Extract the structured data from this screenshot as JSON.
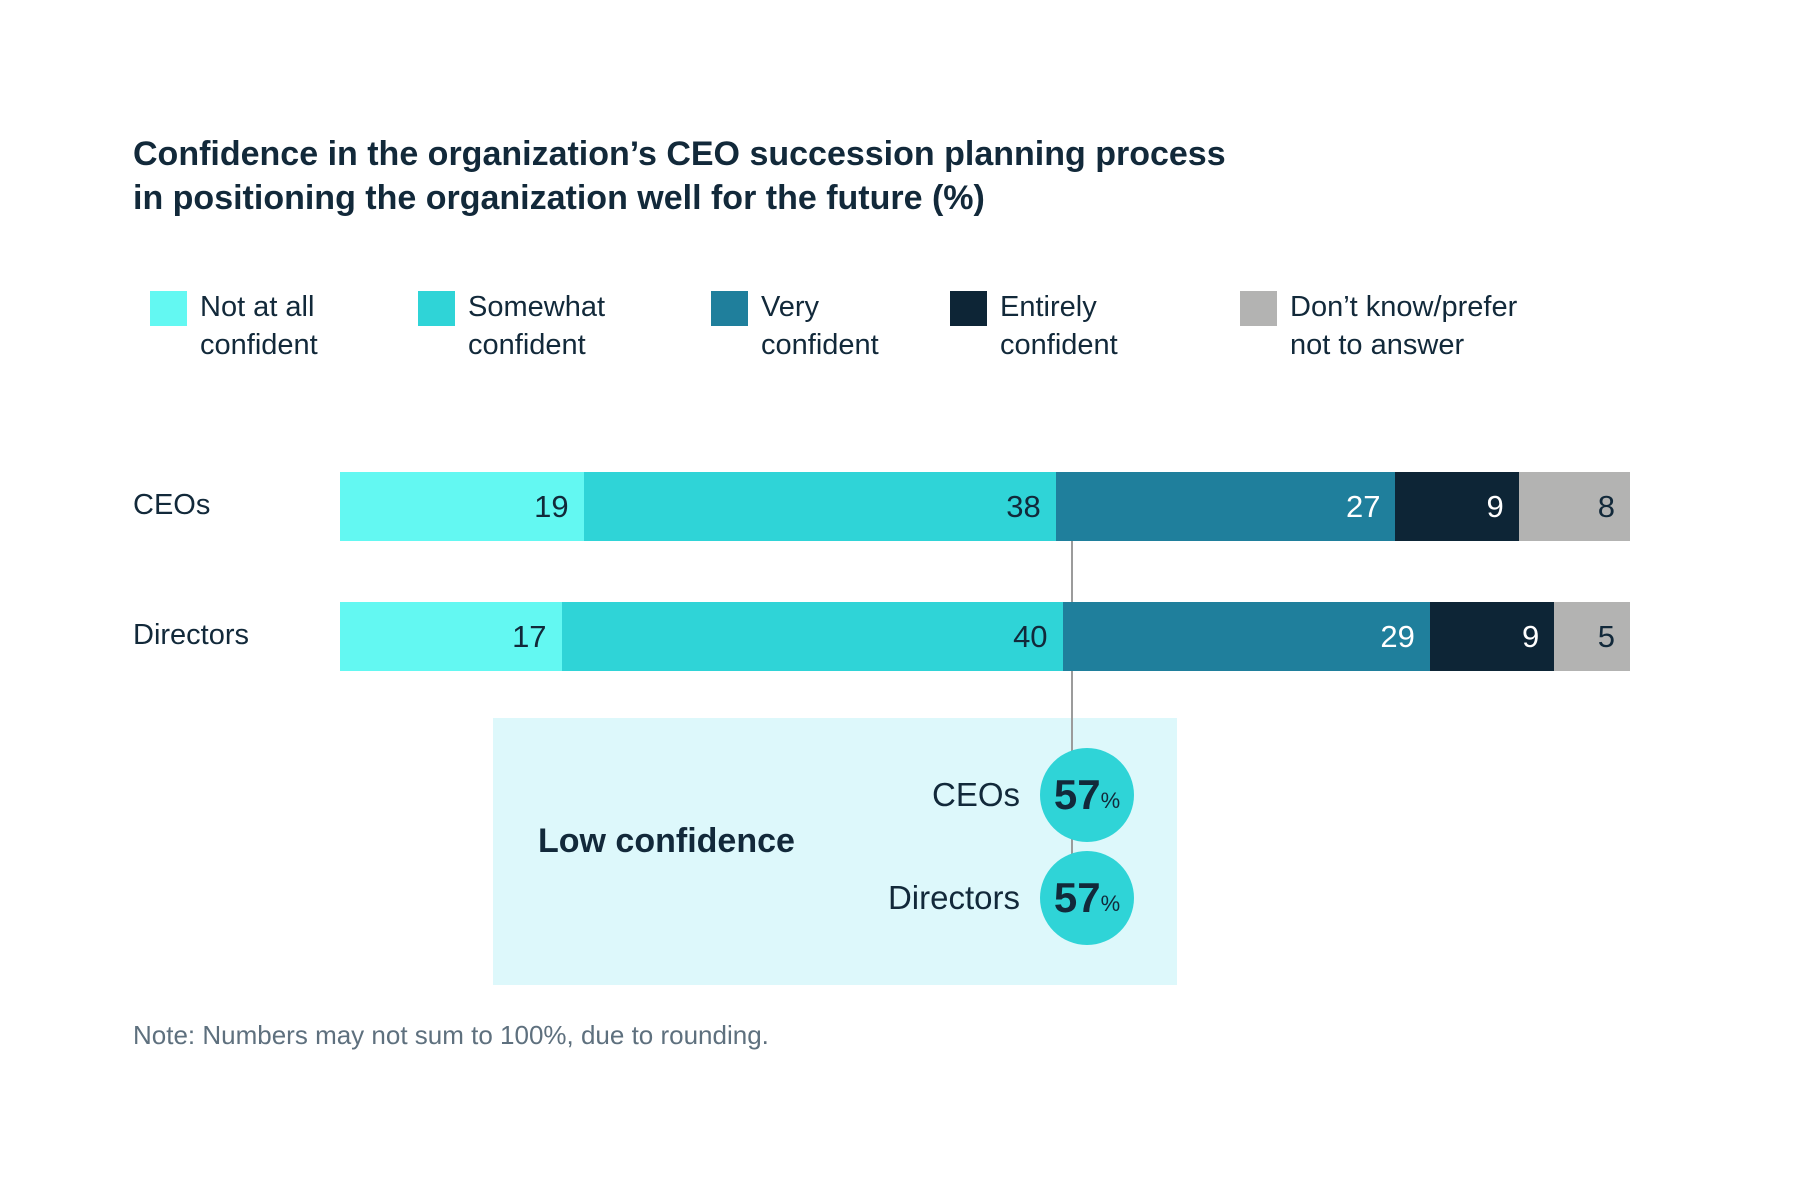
{
  "title": {
    "line1": "Confidence in the organization’s CEO succession planning process",
    "line2": "in positioning the organization well for the future (%)"
  },
  "legend": [
    {
      "line1": "Not at all",
      "line2": "confident"
    },
    {
      "line1": "Somewhat",
      "line2": "confident"
    },
    {
      "line1": "Very",
      "line2": "confident"
    },
    {
      "line1": "Entirely",
      "line2": "confident"
    },
    {
      "line1": "Don’t know/prefer",
      "line2": "not to answer"
    }
  ],
  "chart_data": {
    "type": "bar",
    "variant": "horizontal-stacked",
    "title": "Confidence in the organization’s CEO succession planning process in positioning the organization well for the future (%)",
    "categories": [
      "CEOs",
      "Directors"
    ],
    "series": [
      {
        "name": "Not at all confident",
        "color": "#63F8F2",
        "value_color": "#12293A",
        "values": [
          19,
          17
        ]
      },
      {
        "name": "Somewhat confident",
        "color": "#2FD4D7",
        "value_color": "#12293A",
        "values": [
          38,
          40
        ]
      },
      {
        "name": "Very confident",
        "color": "#1F7F9C",
        "value_color": "#FFFFFF",
        "values": [
          27,
          29
        ]
      },
      {
        "name": "Entirely confident",
        "color": "#0D2536",
        "value_color": "#FFFFFF",
        "values": [
          9,
          9
        ]
      },
      {
        "name": "Don’t know/prefer not to answer",
        "color": "#B3B3B2",
        "value_color": "#12293A",
        "values": [
          8,
          5
        ]
      }
    ],
    "xlim": [
      0,
      100
    ],
    "grid": false,
    "legend_position": "top",
    "callout": {
      "label": "Low confidence",
      "items": [
        {
          "label": "CEOs",
          "value": "57",
          "unit": "%"
        },
        {
          "label": "Directors",
          "value": "57",
          "unit": "%"
        }
      ]
    }
  },
  "note": "Note: Numbers may not sum to 100%, due to rounding.",
  "colors": {
    "background": "#FFFFFF",
    "title_text": "#12293A",
    "note_text": "#5E707E",
    "callout_bg": "#DDF8FB",
    "callout_circle": "#2FD4D7",
    "connector": "#9B9B9B"
  }
}
